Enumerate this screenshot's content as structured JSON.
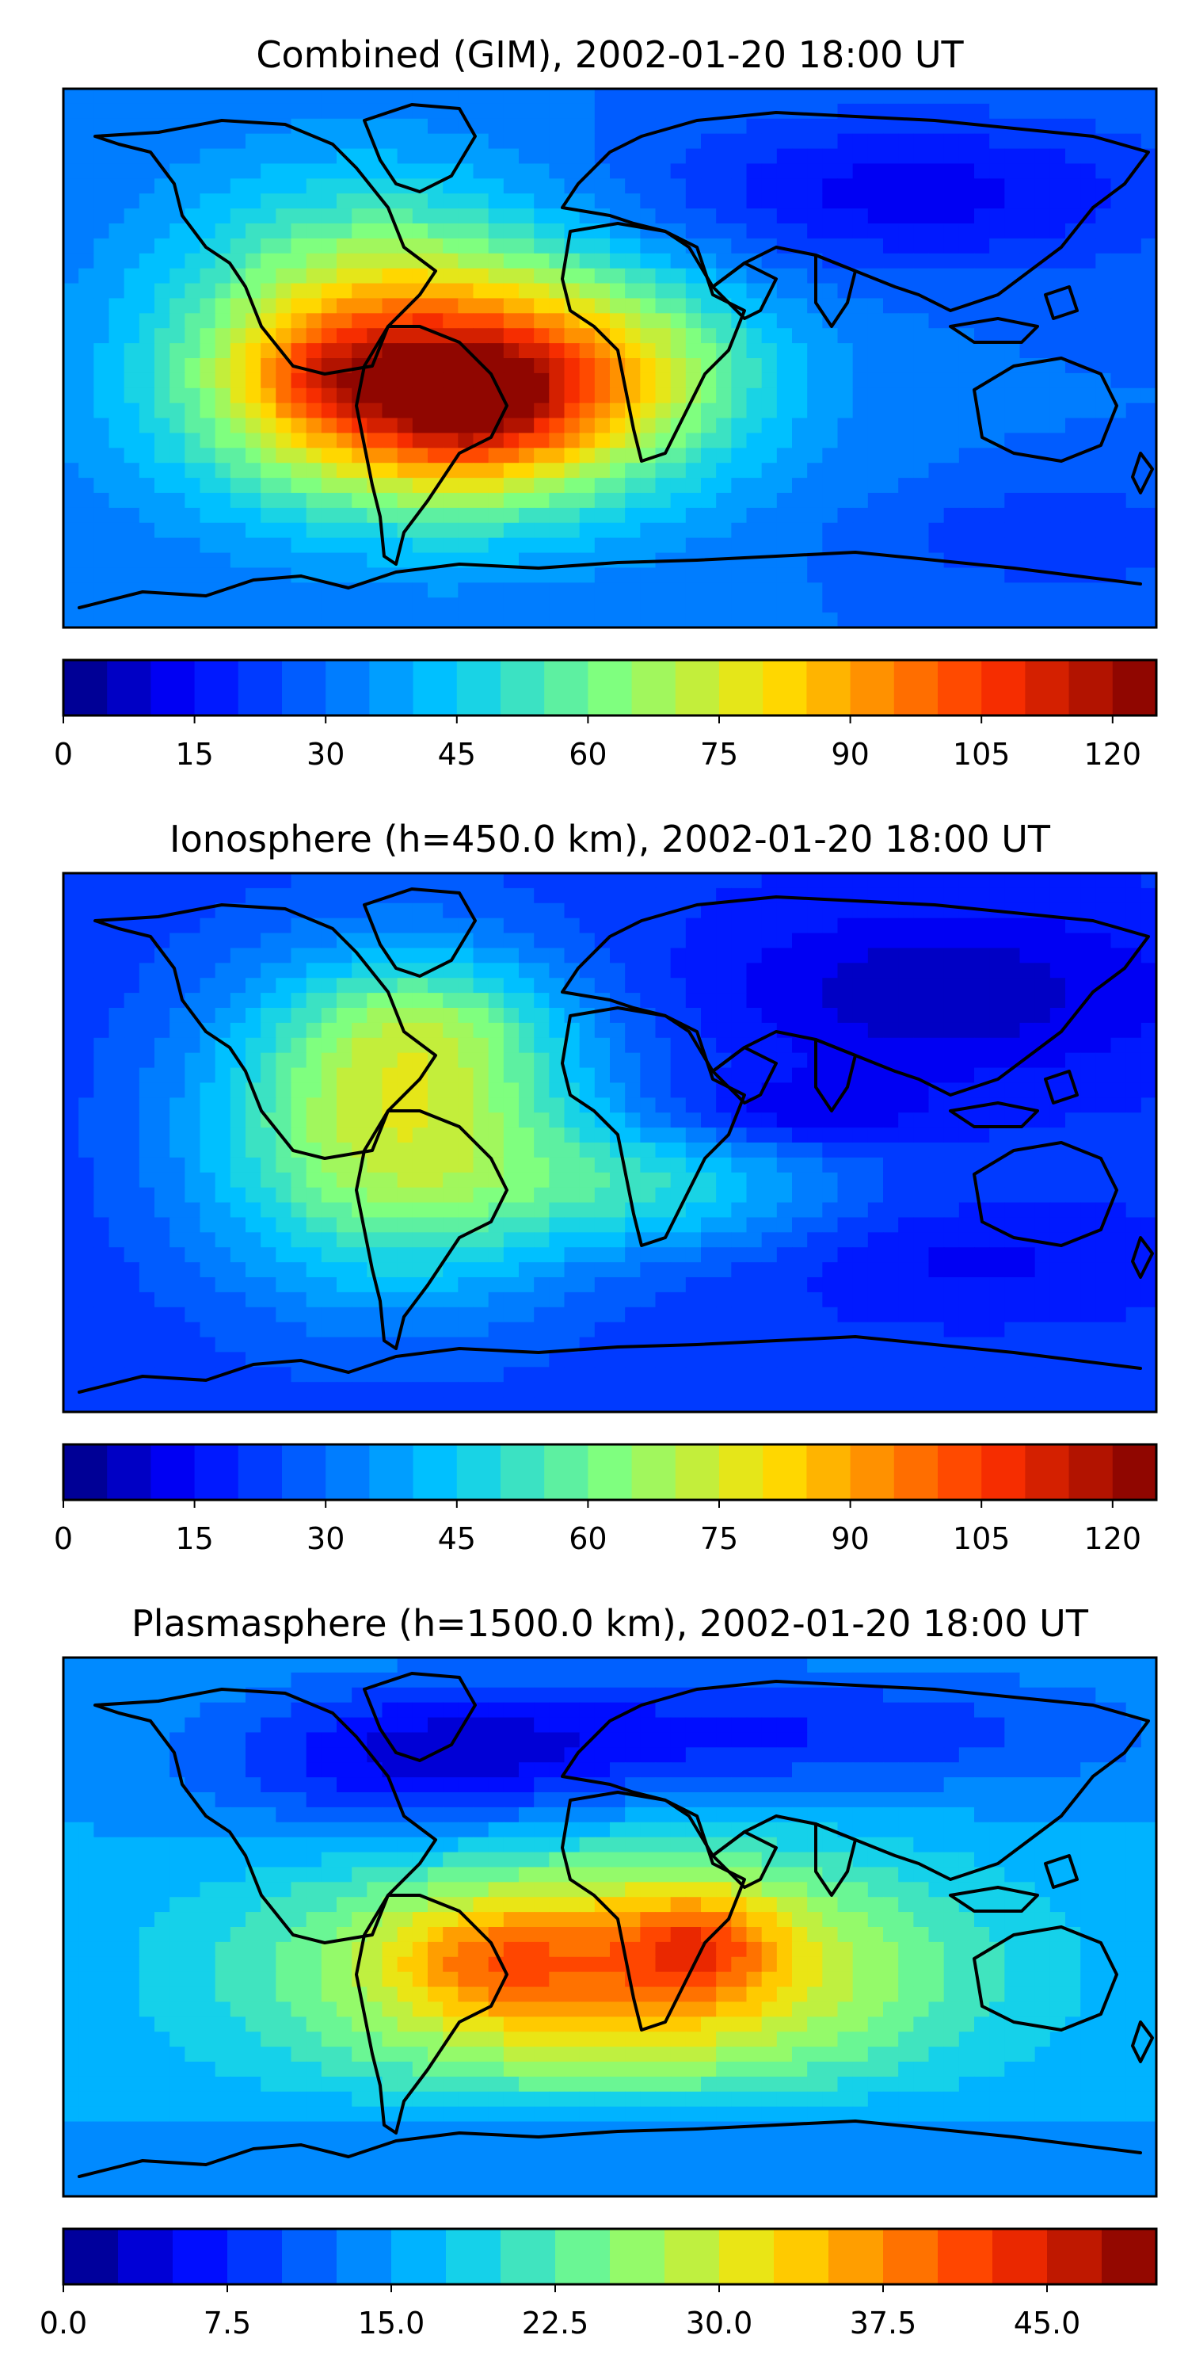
{
  "figure": {
    "panels": [
      {
        "id": "combined",
        "title": "Combined (GIM), 2002-01-20 18:00 UT",
        "colorbar": {
          "vmin": 0,
          "vmax": 125,
          "levels": 25,
          "ticks": [
            0,
            15,
            30,
            45,
            60,
            75,
            90,
            105,
            120
          ],
          "tick_labels": [
            "0",
            "15",
            "30",
            "45",
            "60",
            "75",
            "90",
            "105",
            "120"
          ]
        },
        "field": {
          "background_level": 0.24,
          "blobs": [
            {
              "lon": -55,
              "lat": -12,
              "level": 0.62,
              "sx": 55,
              "sy": 28
            },
            {
              "lon": -45,
              "lat": -15,
              "level": 0.18,
              "sx": 22,
              "sy": 14
            },
            {
              "lon": -95,
              "lat": -5,
              "level": 0.12,
              "sx": 20,
              "sy": 12
            },
            {
              "lon": -80,
              "lat": 30,
              "level": 0.18,
              "sx": 45,
              "sy": 28
            },
            {
              "lon": 5,
              "lat": 0,
              "level": 0.12,
              "sx": 35,
              "sy": 20
            },
            {
              "lon": 100,
              "lat": 55,
              "level": -0.14,
              "sx": 60,
              "sy": 18
            },
            {
              "lon": 150,
              "lat": -60,
              "level": -0.08,
              "sx": 40,
              "sy": 12
            }
          ]
        }
      },
      {
        "id": "ionosphere",
        "title": "Ionosphere  (h=450.0 km), 2002-01-20 18:00 UT",
        "colorbar": {
          "vmin": 0,
          "vmax": 125,
          "levels": 25,
          "ticks": [
            0,
            15,
            30,
            45,
            60,
            75,
            90,
            105,
            120
          ],
          "tick_labels": [
            "0",
            "15",
            "30",
            "45",
            "60",
            "75",
            "90",
            "105",
            "120"
          ]
        },
        "field": {
          "background_level": 0.17,
          "blobs": [
            {
              "lon": -70,
              "lat": 5,
              "level": 0.42,
              "sx": 45,
              "sy": 38
            },
            {
              "lon": -60,
              "lat": 40,
              "level": 0.12,
              "sx": 30,
              "sy": 15
            },
            {
              "lon": 20,
              "lat": -15,
              "level": 0.18,
              "sx": 40,
              "sy": 15
            },
            {
              "lon": 60,
              "lat": 10,
              "level": -0.1,
              "sx": 30,
              "sy": 8
            },
            {
              "lon": 110,
              "lat": 50,
              "level": -0.12,
              "sx": 55,
              "sy": 20
            },
            {
              "lon": 120,
              "lat": -40,
              "level": -0.06,
              "sx": 40,
              "sy": 12
            }
          ]
        }
      },
      {
        "id": "plasmasphere",
        "title": "Plasmasphere (h=1500.0 km), 2002-01-20 18:00 UT",
        "colorbar": {
          "vmin": 0,
          "vmax": 50,
          "levels": 20,
          "ticks": [
            0,
            7.5,
            15,
            22.5,
            30,
            37.5,
            45
          ],
          "tick_labels": [
            "0.0",
            "7.5",
            "15.0",
            "22.5",
            "30.0",
            "37.5",
            "45.0"
          ]
        },
        "field": {
          "background_level": 0.3,
          "blobs": [
            {
              "lon": 0,
              "lat": -15,
              "level": 0.45,
              "sx": 75,
              "sy": 28
            },
            {
              "lon": 30,
              "lat": -5,
              "level": 0.18,
              "sx": 18,
              "sy": 12
            },
            {
              "lon": -40,
              "lat": -10,
              "level": 0.12,
              "sx": 22,
              "sy": 12
            },
            {
              "lon": -60,
              "lat": 55,
              "level": -0.2,
              "sx": 50,
              "sy": 18
            },
            {
              "lon": 60,
              "lat": 65,
              "level": -0.15,
              "sx": 80,
              "sy": 15
            },
            {
              "lon": 0,
              "lat": -70,
              "level": -0.1,
              "sx": 80,
              "sy": 10
            }
          ]
        }
      }
    ]
  }
}
